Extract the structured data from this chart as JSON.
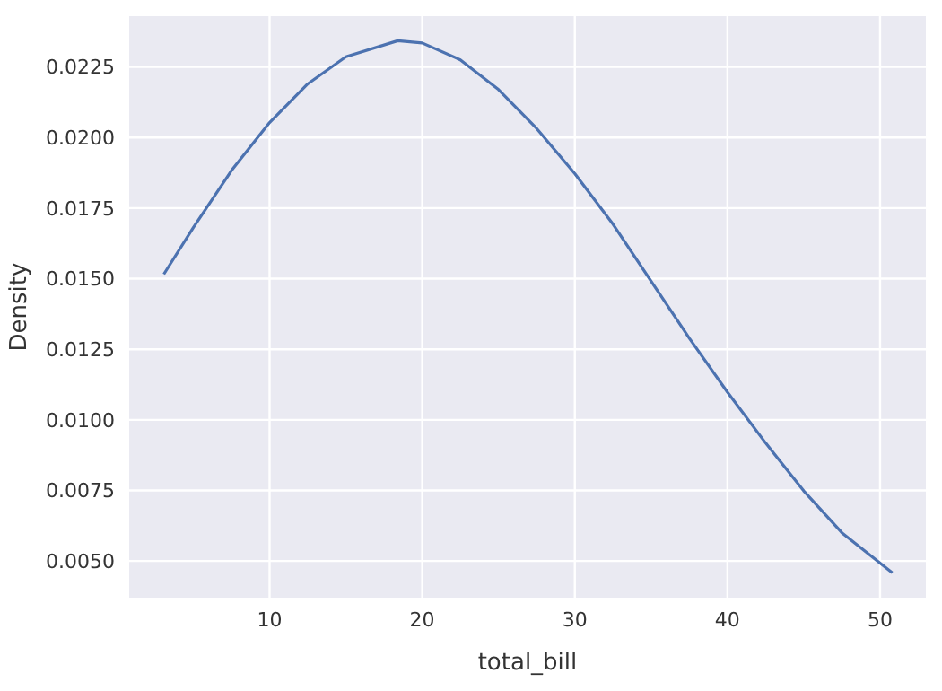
{
  "chart_data": {
    "type": "line",
    "xlabel": "total_bill",
    "ylabel": "Density",
    "x": [
      3.07,
      5,
      7.5,
      10,
      12.5,
      15,
      18.4,
      20,
      22.5,
      25,
      27.5,
      30,
      32.5,
      35,
      37.5,
      40,
      42.5,
      45,
      47.5,
      50.8
    ],
    "series": [
      {
        "color": "#4c72b0",
        "values": [
          0.01516,
          0.01681,
          0.01883,
          0.02053,
          0.0219,
          0.02286,
          0.02343,
          0.02335,
          0.02275,
          0.0217,
          0.02032,
          0.01872,
          0.01693,
          0.01491,
          0.01289,
          0.01098,
          0.00918,
          0.00748,
          0.006,
          0.00458
        ]
      }
    ],
    "xlim": [
      0.8,
      53
    ],
    "xticks": [
      10,
      20,
      30,
      40,
      50
    ],
    "ylim": [
      0.0037,
      0.0243
    ],
    "yticks": [
      {
        "value": 0.005,
        "label": "0.0050"
      },
      {
        "value": 0.0075,
        "label": "0.0075"
      },
      {
        "value": 0.01,
        "label": "0.0100"
      },
      {
        "value": 0.0125,
        "label": "0.0125"
      },
      {
        "value": 0.015,
        "label": "0.0150"
      },
      {
        "value": 0.0175,
        "label": "0.0175"
      },
      {
        "value": 0.02,
        "label": "0.0200"
      },
      {
        "value": 0.0225,
        "label": "0.0225"
      }
    ],
    "grid": true,
    "marker": "none",
    "line_style": "solid"
  }
}
